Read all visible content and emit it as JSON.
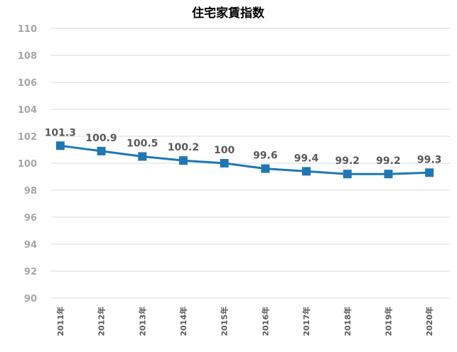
{
  "chart_data": {
    "type": "line",
    "title": "住宅家賃指数",
    "xlabel": "",
    "ylabel": "",
    "categories": [
      "2011年",
      "2012年",
      "2013年",
      "2014年",
      "2015年",
      "2016年",
      "2017年",
      "2018年",
      "2019年",
      "2020年"
    ],
    "series": [
      {
        "values": [
          101.3,
          100.9,
          100.5,
          100.2,
          100,
          99.6,
          99.4,
          99.2,
          99.2,
          99.3
        ],
        "labels": [
          "101.3",
          "100.9",
          "100.5",
          "100.2",
          "100",
          "99.6",
          "99.4",
          "99.2",
          "99.2",
          "99.3"
        ],
        "color": "#1f77b4"
      }
    ],
    "ylim": [
      90,
      110
    ],
    "yticks": [
      "90",
      "92",
      "94",
      "96",
      "98",
      "100",
      "102",
      "104",
      "106",
      "108",
      "110"
    ],
    "grid": true,
    "legend": "none",
    "marker": "square"
  }
}
